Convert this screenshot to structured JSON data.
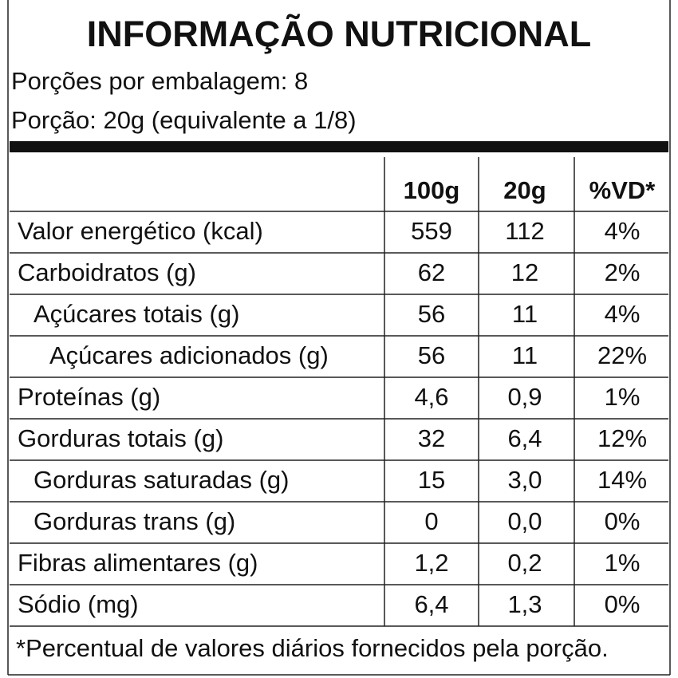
{
  "header": {
    "title": "INFORMAÇÃO NUTRICIONAL",
    "servings_per_package": "Porções por embalagem: 8",
    "serving_size": "Porção: 20g (equivalente a 1/8)"
  },
  "table": {
    "columns": [
      "100g",
      "20g",
      "%VD*"
    ],
    "rows": [
      [
        "Valor energético (kcal)",
        "559",
        "112",
        "4%"
      ],
      [
        "Carboidratos (g)",
        "62",
        "12",
        "2%"
      ],
      [
        "Açúcares totais (g)",
        "56",
        "11",
        "4%"
      ],
      [
        "Açúcares adicionados (g)",
        "56",
        "11",
        "22%"
      ],
      [
        "Proteínas (g)",
        "4,6",
        "0,9",
        "1%"
      ],
      [
        "Gorduras totais (g)",
        "32",
        "6,4",
        "12%"
      ],
      [
        "Gorduras saturadas (g)",
        "15",
        "3,0",
        "14%"
      ],
      [
        "Gorduras trans (g)",
        "0",
        "0,0",
        "0%"
      ],
      [
        "Fibras alimentares (g)",
        "1,2",
        "0,2",
        "1%"
      ],
      [
        "Sódio (mg)",
        "6,4",
        "1,3",
        "0%"
      ]
    ]
  },
  "footer": "*Percentual de valores diários fornecidos pela porção."
}
